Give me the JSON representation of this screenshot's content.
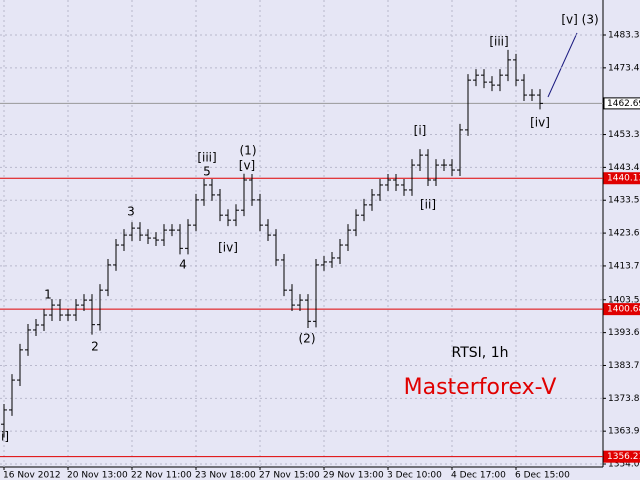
{
  "chart_data": {
    "type": "ohlc",
    "subtitle": "RTSI, 1h",
    "title": "Masterforex-V",
    "background": "#e6e6f5",
    "bar_color": "#000000",
    "grid": true,
    "categories": [
      "16 Nov 2012",
      null,
      null,
      null,
      null,
      null,
      null,
      null,
      "20 Nov 13:00",
      null,
      null,
      null,
      null,
      null,
      null,
      null,
      "22 Nov 11:00",
      null,
      null,
      null,
      null,
      null,
      null,
      null,
      "23 Nov 18:00",
      null,
      null,
      null,
      null,
      null,
      null,
      null,
      "27 Nov 15:00",
      null,
      null,
      null,
      null,
      null,
      null,
      null,
      "29 Nov 13:00",
      null,
      null,
      null,
      null,
      null,
      null,
      null,
      "3 Dec 10:00",
      null,
      null,
      null,
      null,
      null,
      null,
      null,
      "4 Dec 17:00",
      null,
      null,
      null,
      null,
      null,
      null,
      null,
      "6 Dec 15:00",
      null,
      null,
      null
    ],
    "open": [
      1366.0,
      1370.3,
      1379.3,
      1388.4,
      1394.4,
      1395.9,
      1398.9,
      1401.9,
      1398.9,
      1398.9,
      1401.9,
      1403.4,
      1396.0,
      1406.4,
      1414.0,
      1420.0,
      1423.0,
      1425.1,
      1423.0,
      1422.1,
      1421.5,
      1424.5,
      1424.5,
      1419.0,
      1426.0,
      1433.6,
      1438.1,
      1435.1,
      1429.0,
      1427.5,
      1430.5,
      1439.6,
      1433.6,
      1426.0,
      1423.0,
      1415.5,
      1406.4,
      1401.9,
      1403.4,
      1397.0,
      1414.0,
      1414.9,
      1416.1,
      1420.0,
      1424.5,
      1429.0,
      1432.1,
      1435.1,
      1438.1,
      1439.6,
      1438.1,
      1436.6,
      1444.1,
      1447.1,
      1439.6,
      1444.1,
      1444.1,
      1442.6,
      1454.7,
      1469.7,
      1471.2,
      1469.1,
      1468.2,
      1471.2,
      1475.8,
      1469.7,
      1465.2,
      1465.2
    ],
    "high": [
      1372.1,
      1381.1,
      1390.2,
      1396.2,
      1397.7,
      1400.7,
      1403.7,
      1403.7,
      1400.7,
      1403.7,
      1405.2,
      1405.2,
      1408.2,
      1415.8,
      1421.8,
      1424.8,
      1426.9,
      1426.9,
      1424.8,
      1423.9,
      1426.3,
      1426.3,
      1426.3,
      1427.8,
      1435.4,
      1439.9,
      1439.9,
      1436.9,
      1430.8,
      1432.3,
      1441.5,
      1441.4,
      1435.4,
      1427.8,
      1424.8,
      1417.3,
      1408.2,
      1405.2,
      1405.2,
      1415.8,
      1416.7,
      1417.9,
      1421.8,
      1426.3,
      1430.8,
      1433.9,
      1436.9,
      1439.9,
      1441.4,
      1441.4,
      1439.9,
      1445.9,
      1448.9,
      1448.9,
      1445.9,
      1445.9,
      1445.9,
      1456.5,
      1471.5,
      1473.0,
      1473.0,
      1470.9,
      1473.0,
      1478.8,
      1477.6,
      1471.5,
      1467.0,
      1467.0
    ],
    "low": [
      1362.0,
      1368.5,
      1377.5,
      1386.6,
      1392.6,
      1394.1,
      1397.1,
      1397.1,
      1397.1,
      1397.1,
      1400.1,
      1393.0,
      1394.2,
      1404.6,
      1412.2,
      1418.2,
      1421.2,
      1421.2,
      1420.3,
      1419.7,
      1419.7,
      1422.7,
      1417.2,
      1417.2,
      1424.2,
      1431.8,
      1433.3,
      1427.2,
      1425.7,
      1425.7,
      1428.7,
      1431.8,
      1424.2,
      1421.2,
      1413.7,
      1404.6,
      1400.1,
      1400.1,
      1395.0,
      1395.2,
      1412.2,
      1413.1,
      1414.3,
      1418.2,
      1422.7,
      1427.2,
      1430.3,
      1433.3,
      1436.3,
      1436.3,
      1434.8,
      1434.8,
      1442.3,
      1437.8,
      1437.8,
      1442.3,
      1440.8,
      1440.8,
      1452.9,
      1467.9,
      1467.3,
      1466.4,
      1466.4,
      1469.4,
      1467.9,
      1463.4,
      1463.4,
      1460.9
    ],
    "close": [
      1370.3,
      1379.3,
      1388.4,
      1394.4,
      1395.9,
      1398.9,
      1401.9,
      1398.9,
      1398.9,
      1401.9,
      1403.4,
      1396.0,
      1406.4,
      1414.0,
      1420.0,
      1423.0,
      1425.1,
      1423.0,
      1422.1,
      1421.5,
      1424.5,
      1424.5,
      1419.0,
      1426.0,
      1433.6,
      1438.1,
      1435.1,
      1429.0,
      1427.5,
      1430.5,
      1439.6,
      1433.6,
      1426.0,
      1423.0,
      1415.5,
      1406.4,
      1401.9,
      1403.4,
      1397.0,
      1414.0,
      1414.9,
      1416.1,
      1420.0,
      1424.5,
      1429.0,
      1432.1,
      1435.1,
      1438.1,
      1439.6,
      1438.1,
      1436.6,
      1444.1,
      1447.1,
      1439.6,
      1444.1,
      1444.1,
      1442.6,
      1454.7,
      1469.7,
      1471.2,
      1469.1,
      1468.2,
      1471.2,
      1475.8,
      1469.7,
      1465.2,
      1465.2,
      1462.69
    ],
    "ylim": [
      1353.1,
      1493.85
    ],
    "yticks": [
      {
        "value": 1483.3,
        "label": "1483.30"
      },
      {
        "value": 1473.4,
        "label": "1473.40"
      },
      {
        "value": 1453.3,
        "label": "1453.30"
      },
      {
        "value": 1443.4,
        "label": "1443.40"
      },
      {
        "value": 1433.5,
        "label": "1433.50"
      },
      {
        "value": 1423.6,
        "label": "1423.60"
      },
      {
        "value": 1413.7,
        "label": "1413.70"
      },
      {
        "value": 1403.5,
        "label": "1403.50"
      },
      {
        "value": 1393.6,
        "label": "1393.60"
      },
      {
        "value": 1383.7,
        "label": "1383.70"
      },
      {
        "value": 1373.8,
        "label": "1373.80"
      },
      {
        "value": 1363.9,
        "label": "1363.90"
      },
      {
        "value": 1354.0,
        "label": "1354.00"
      }
    ],
    "hlines": [
      {
        "value": 1462.69,
        "label": "1462.69",
        "color": "#999999"
      },
      {
        "value": 1440.13,
        "label": "1440.13",
        "color": "#e00000"
      },
      {
        "value": 1400.68,
        "label": "1400.68",
        "color": "#e00000"
      },
      {
        "value": 1356.21,
        "label": "1356.21",
        "color": "#e00000"
      }
    ],
    "annotations": [
      "i]",
      "1",
      "2",
      "3",
      "4",
      "5",
      "[iii]",
      "(1)",
      "[v]",
      "[iv]",
      "(2)",
      "[i]",
      "[ii]",
      "[iii]",
      "[iv]",
      "[v] (3)"
    ]
  }
}
